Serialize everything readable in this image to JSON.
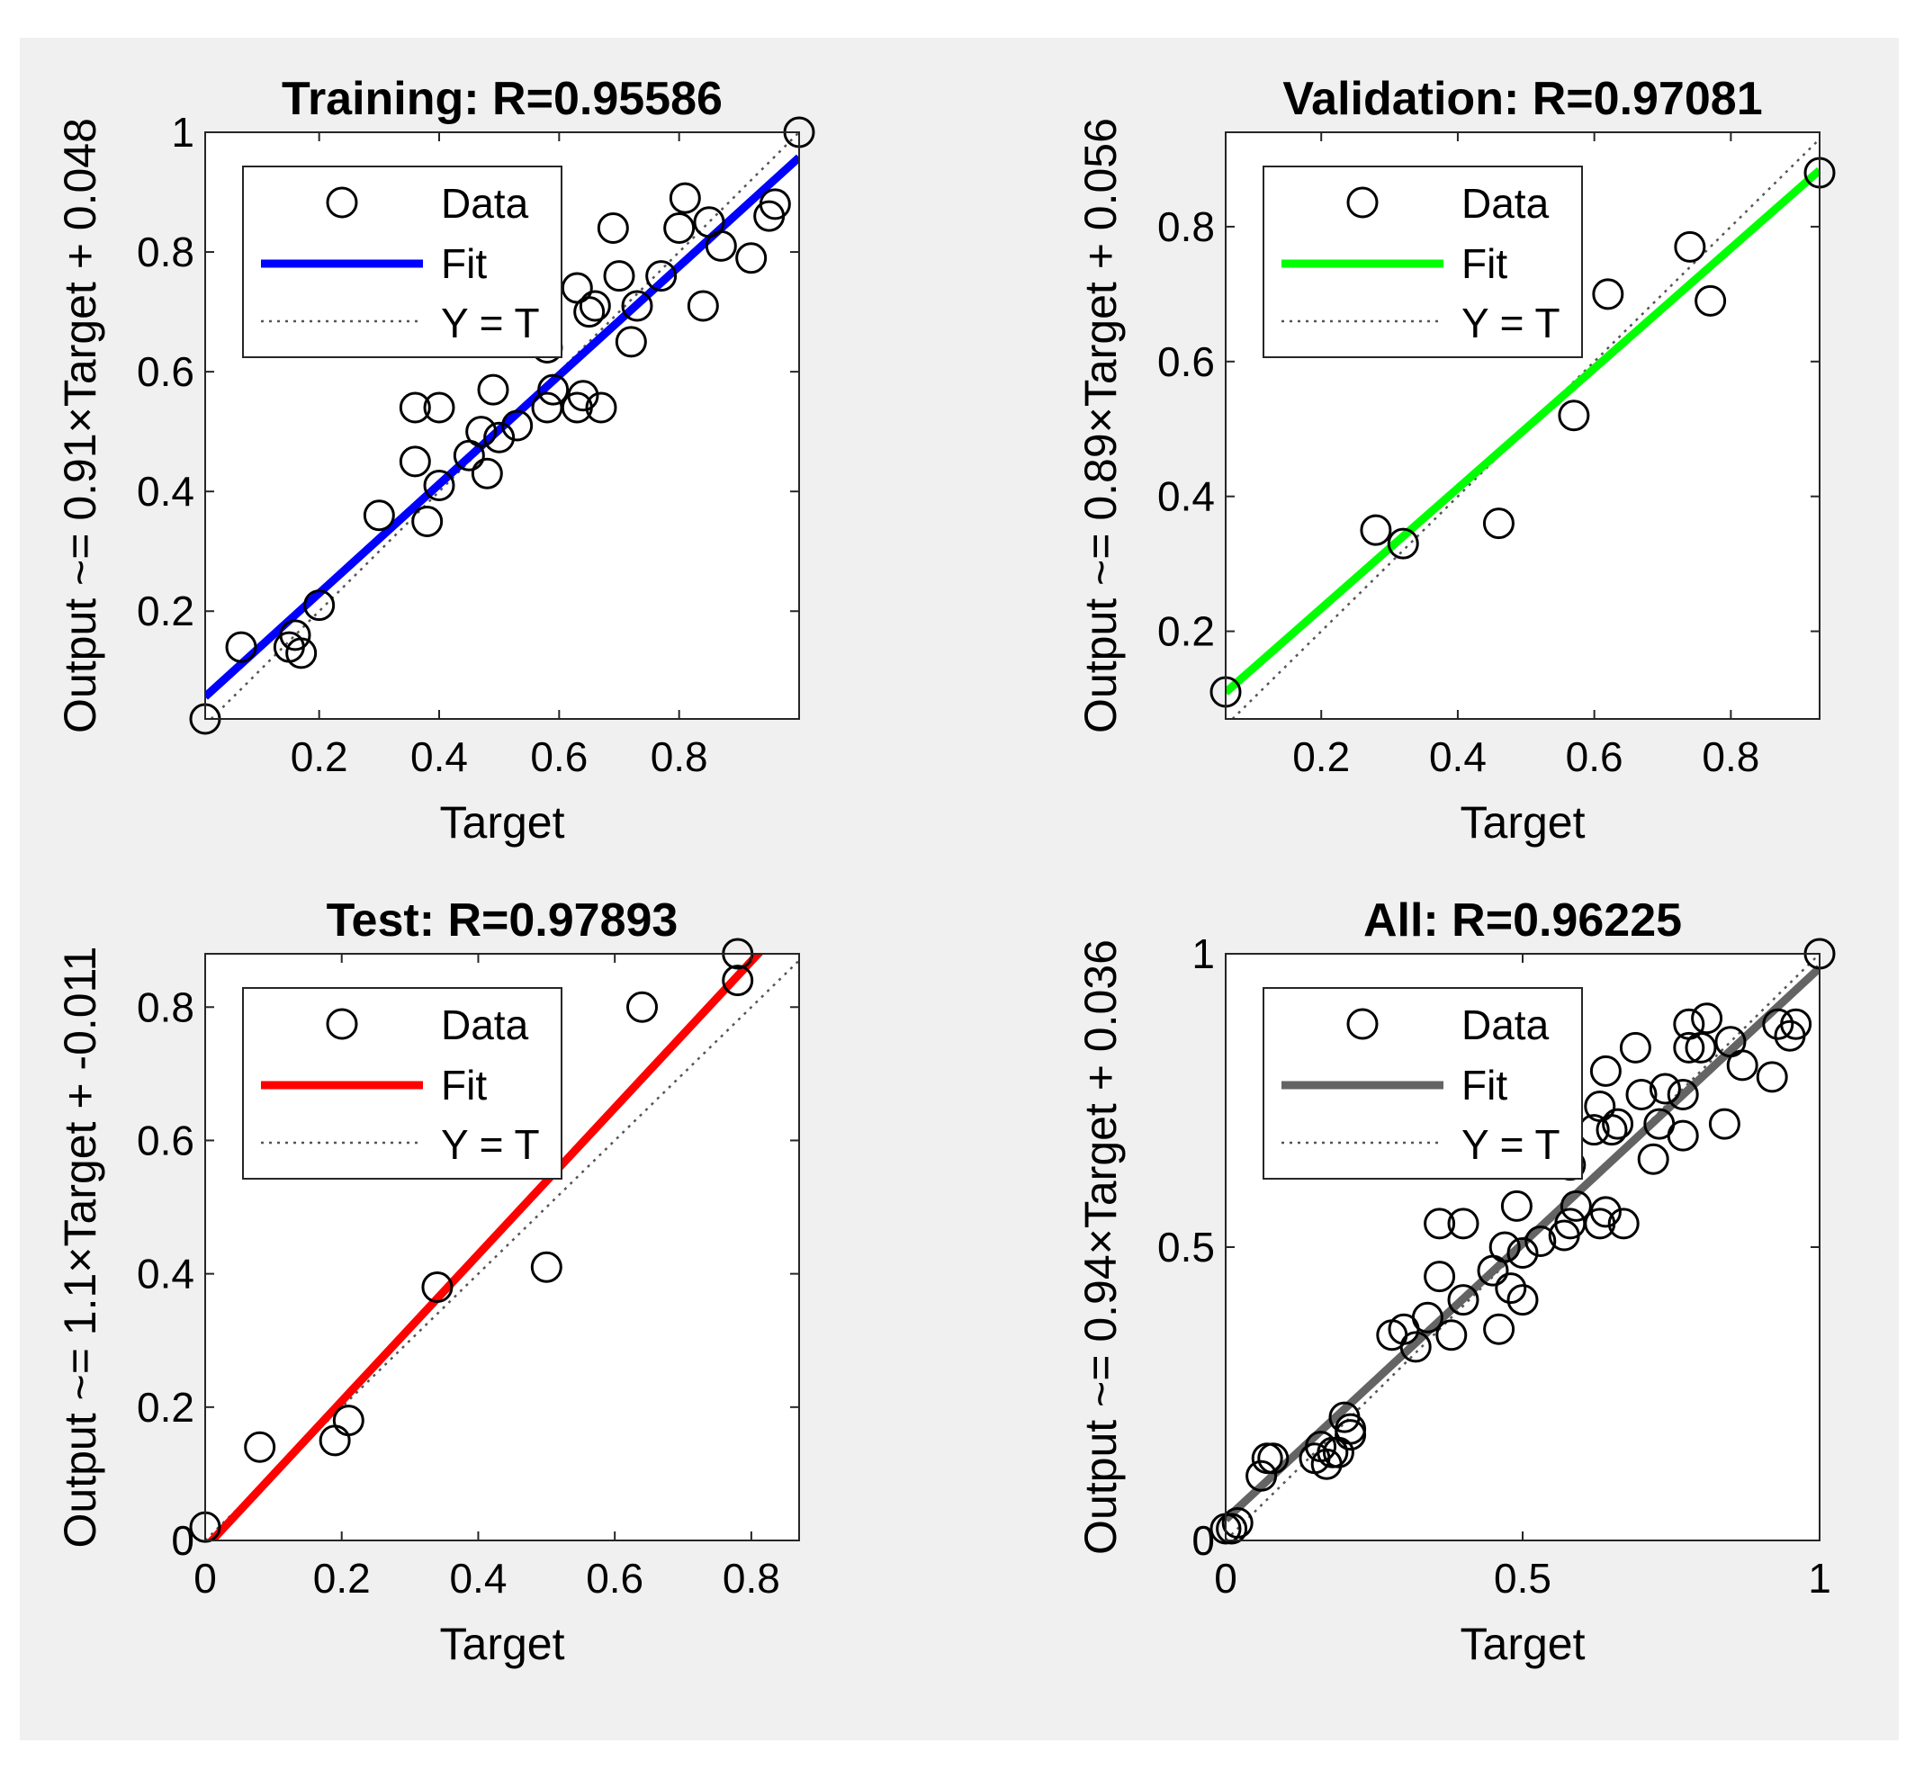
{
  "figure": {
    "background": "#f0f0f0",
    "xlabel": "Target",
    "legend_labels": {
      "data": "Data",
      "fit": "Fit",
      "identity": "Y = T"
    },
    "legend_position": "top-left"
  },
  "chart_data": [
    {
      "type": "scatter",
      "title": "Training: R=0.95586",
      "xlabel": "Target",
      "ylabel": "Output ~= 0.91×Target + 0.048",
      "fit_color": "#0000ff",
      "fit": {
        "slope": 0.91,
        "intercept": 0.048
      },
      "xlim": [
        0.01,
        1.0
      ],
      "ylim": [
        0.02,
        1.0
      ],
      "xticks": [
        0.2,
        0.4,
        0.6,
        0.8
      ],
      "xticklabels": [
        "0.2",
        "0.4",
        "0.6",
        "0.8"
      ],
      "yticks": [
        0.2,
        0.4,
        0.6,
        0.8,
        1.0
      ],
      "yticklabels": [
        "0.2",
        "0.4",
        "0.6",
        "0.8",
        "1"
      ],
      "points": [
        [
          0.01,
          0.02
        ],
        [
          0.07,
          0.14
        ],
        [
          0.15,
          0.14
        ],
        [
          0.16,
          0.16
        ],
        [
          0.17,
          0.13
        ],
        [
          0.2,
          0.21
        ],
        [
          0.3,
          0.36
        ],
        [
          0.36,
          0.45
        ],
        [
          0.36,
          0.54
        ],
        [
          0.38,
          0.35
        ],
        [
          0.4,
          0.54
        ],
        [
          0.4,
          0.41
        ],
        [
          0.45,
          0.46
        ],
        [
          0.47,
          0.5
        ],
        [
          0.48,
          0.43
        ],
        [
          0.49,
          0.57
        ],
        [
          0.5,
          0.49
        ],
        [
          0.53,
          0.51
        ],
        [
          0.58,
          0.54
        ],
        [
          0.59,
          0.57
        ],
        [
          0.58,
          0.64
        ],
        [
          0.63,
          0.74
        ],
        [
          0.63,
          0.54
        ],
        [
          0.64,
          0.56
        ],
        [
          0.65,
          0.7
        ],
        [
          0.66,
          0.71
        ],
        [
          0.67,
          0.54
        ],
        [
          0.69,
          0.84
        ],
        [
          0.7,
          0.76
        ],
        [
          0.72,
          0.65
        ],
        [
          0.73,
          0.71
        ],
        [
          0.77,
          0.76
        ],
        [
          0.8,
          0.84
        ],
        [
          0.81,
          0.89
        ],
        [
          0.84,
          0.71
        ],
        [
          0.85,
          0.85
        ],
        [
          0.87,
          0.81
        ],
        [
          0.92,
          0.79
        ],
        [
          0.95,
          0.86
        ],
        [
          0.96,
          0.88
        ],
        [
          1.0,
          1.0
        ]
      ]
    },
    {
      "type": "scatter",
      "title": "Validation: R=0.97081",
      "xlabel": "Target",
      "ylabel": "Output ~= 0.89×Target + 0.056",
      "fit_color": "#00ff00",
      "fit": {
        "slope": 0.89,
        "intercept": 0.056
      },
      "xlim": [
        0.06,
        0.93
      ],
      "ylim": [
        0.07,
        0.94
      ],
      "xticks": [
        0.2,
        0.4,
        0.6,
        0.8
      ],
      "xticklabels": [
        "0.2",
        "0.4",
        "0.6",
        "0.8"
      ],
      "yticks": [
        0.2,
        0.4,
        0.6,
        0.8
      ],
      "yticklabels": [
        "0.2",
        "0.4",
        "0.6",
        "0.8"
      ],
      "points": [
        [
          0.06,
          0.11
        ],
        [
          0.28,
          0.35
        ],
        [
          0.32,
          0.33
        ],
        [
          0.46,
          0.36
        ],
        [
          0.57,
          0.52
        ],
        [
          0.62,
          0.7
        ],
        [
          0.74,
          0.77
        ],
        [
          0.77,
          0.69
        ],
        [
          0.93,
          0.88
        ]
      ]
    },
    {
      "type": "scatter",
      "title": "Test: R=0.97893",
      "xlabel": "Target",
      "ylabel": "Output ~= 1.1×Target + -0.011",
      "fit_color": "#ff0000",
      "fit": {
        "slope": 1.1,
        "intercept": -0.011
      },
      "xlim": [
        0.0,
        0.87
      ],
      "ylim": [
        0.0,
        0.88
      ],
      "xticks": [
        0,
        0.2,
        0.4,
        0.6,
        0.8
      ],
      "xticklabels": [
        "0",
        "0.2",
        "0.4",
        "0.6",
        "0.8"
      ],
      "yticks": [
        0,
        0.2,
        0.4,
        0.6,
        0.8
      ],
      "yticklabels": [
        "0",
        "0.2",
        "0.4",
        "0.6",
        "0.8"
      ],
      "points": [
        [
          0.0,
          0.02
        ],
        [
          0.08,
          0.14
        ],
        [
          0.19,
          0.15
        ],
        [
          0.21,
          0.18
        ],
        [
          0.34,
          0.38
        ],
        [
          0.5,
          0.41
        ],
        [
          0.64,
          0.8
        ],
        [
          0.78,
          0.84
        ],
        [
          0.78,
          0.88
        ]
      ]
    },
    {
      "type": "scatter",
      "title": "All: R=0.96225",
      "xlabel": "Target",
      "ylabel": "Output ~= 0.94×Target + 0.036",
      "fit_color": "#646464",
      "fit": {
        "slope": 0.94,
        "intercept": 0.036
      },
      "xlim": [
        0.0,
        1.0
      ],
      "ylim": [
        0.0,
        1.0
      ],
      "xticks": [
        0,
        0.5,
        1
      ],
      "xticklabels": [
        "0",
        "0.5",
        "1"
      ],
      "yticks": [
        0,
        0.5,
        1
      ],
      "yticklabels": [
        "0",
        "0.5",
        "1"
      ],
      "points": [
        [
          0.0,
          0.02
        ],
        [
          0.01,
          0.02
        ],
        [
          0.02,
          0.03
        ],
        [
          0.06,
          0.11
        ],
        [
          0.07,
          0.14
        ],
        [
          0.08,
          0.14
        ],
        [
          0.15,
          0.14
        ],
        [
          0.16,
          0.16
        ],
        [
          0.17,
          0.13
        ],
        [
          0.18,
          0.15
        ],
        [
          0.19,
          0.15
        ],
        [
          0.2,
          0.21
        ],
        [
          0.21,
          0.18
        ],
        [
          0.21,
          0.19
        ],
        [
          0.28,
          0.35
        ],
        [
          0.3,
          0.36
        ],
        [
          0.32,
          0.33
        ],
        [
          0.34,
          0.38
        ],
        [
          0.36,
          0.45
        ],
        [
          0.36,
          0.54
        ],
        [
          0.38,
          0.35
        ],
        [
          0.4,
          0.54
        ],
        [
          0.4,
          0.41
        ],
        [
          0.45,
          0.46
        ],
        [
          0.46,
          0.36
        ],
        [
          0.47,
          0.5
        ],
        [
          0.48,
          0.43
        ],
        [
          0.49,
          0.57
        ],
        [
          0.5,
          0.49
        ],
        [
          0.5,
          0.41
        ],
        [
          0.53,
          0.51
        ],
        [
          0.57,
          0.52
        ],
        [
          0.58,
          0.54
        ],
        [
          0.59,
          0.57
        ],
        [
          0.58,
          0.64
        ],
        [
          0.62,
          0.7
        ],
        [
          0.63,
          0.74
        ],
        [
          0.63,
          0.54
        ],
        [
          0.64,
          0.56
        ],
        [
          0.64,
          0.8
        ],
        [
          0.65,
          0.7
        ],
        [
          0.66,
          0.71
        ],
        [
          0.67,
          0.54
        ],
        [
          0.69,
          0.84
        ],
        [
          0.7,
          0.76
        ],
        [
          0.72,
          0.65
        ],
        [
          0.73,
          0.71
        ],
        [
          0.74,
          0.77
        ],
        [
          0.77,
          0.76
        ],
        [
          0.77,
          0.69
        ],
        [
          0.78,
          0.84
        ],
        [
          0.78,
          0.88
        ],
        [
          0.8,
          0.84
        ],
        [
          0.81,
          0.89
        ],
        [
          0.84,
          0.71
        ],
        [
          0.85,
          0.85
        ],
        [
          0.87,
          0.81
        ],
        [
          0.92,
          0.79
        ],
        [
          0.93,
          0.88
        ],
        [
          0.95,
          0.86
        ],
        [
          0.96,
          0.88
        ],
        [
          1.0,
          1.0
        ]
      ]
    }
  ]
}
